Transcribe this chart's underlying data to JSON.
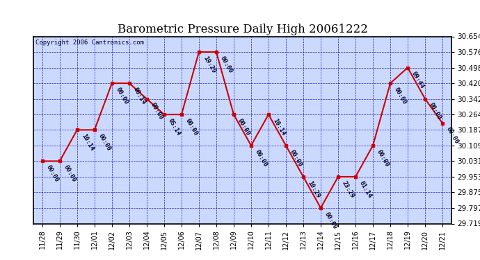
{
  "title": "Barometric Pressure Daily High 20061222",
  "copyright": "Copyright 2006 Cantronics.com",
  "dates": [
    "11/28",
    "11/29",
    "11/30",
    "12/01",
    "12/02",
    "12/03",
    "12/04",
    "12/05",
    "12/06",
    "12/07",
    "12/08",
    "12/09",
    "12/10",
    "12/11",
    "12/12",
    "12/13",
    "12/14",
    "12/15",
    "12/16",
    "12/17",
    "12/18",
    "12/19",
    "12/20",
    "12/21"
  ],
  "values": [
    30.031,
    30.031,
    30.187,
    30.187,
    30.42,
    30.42,
    30.342,
    30.264,
    30.264,
    30.576,
    30.576,
    30.264,
    30.109,
    30.264,
    30.109,
    29.953,
    29.797,
    29.953,
    29.953,
    30.109,
    30.42,
    30.498,
    30.342,
    30.22
  ],
  "annotations": [
    "00:00",
    "00:00",
    "10:14",
    "00:00",
    "00:00",
    "08:14",
    "00:00",
    "05:14",
    "00:00",
    "19:29",
    "00:00",
    "00:00",
    "00:00",
    "10:14",
    "00:00",
    "10:29",
    "00:00",
    "23:29",
    "01:14",
    "00:00",
    "00:00",
    "09:44",
    "00:00",
    "00:00"
  ],
  "ylim_min": 29.719,
  "ylim_max": 30.654,
  "yticks": [
    29.719,
    29.797,
    29.875,
    29.953,
    30.031,
    30.109,
    30.187,
    30.264,
    30.342,
    30.42,
    30.498,
    30.576,
    30.654
  ],
  "line_color": "#cc0000",
  "marker_color": "#cc0000",
  "grid_color": "#0000bb",
  "background_color": "#ccd9ff",
  "title_fontsize": 12,
  "annotation_fontsize": 6.5,
  "copyright_fontsize": 6.5,
  "tick_label_fontsize": 7,
  "ytick_label_fontsize": 7.5
}
